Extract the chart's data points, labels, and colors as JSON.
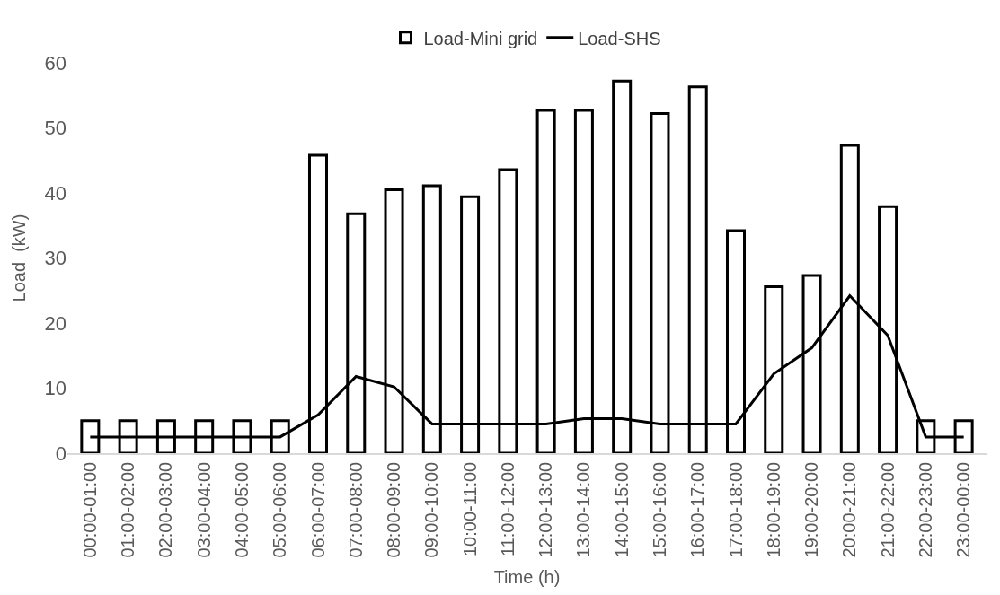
{
  "chart_data": {
    "type": "bar",
    "xlabel": "Time (h)",
    "ylabel": "Load  (kW)",
    "categories": [
      "00:00-01:00",
      "01:00-02:00",
      "02:00-03:00",
      "03:00-04:00",
      "04:00-05:00",
      "05:00-06:00",
      "06:00-07:00",
      "07:00-08:00",
      "08:00-09:00",
      "09:00-10:00",
      "10:00-11:00",
      "11:00-12:00",
      "12:00-13:00",
      "13:00-14:00",
      "14:00-15:00",
      "15:00-16:00",
      "16:00-17:00",
      "17:00-18:00",
      "18:00-19:00",
      "19:00-20:00",
      "20:00-21:00",
      "21:00-22:00",
      "22:00-23:00",
      "23:00-00:00"
    ],
    "series": [
      {
        "name": "Load-Mini grid",
        "color": "#ffffff",
        "values": [
          5,
          5,
          5,
          5,
          5,
          5,
          45.8,
          36.8,
          40.5,
          41.1,
          39.4,
          43.6,
          52.7,
          52.7,
          57.2,
          52.2,
          56.3,
          34.2,
          25.6,
          27.3,
          47.3,
          37.9,
          5,
          5
        ]
      },
      {
        "name": "Load-SHS",
        "type": "line",
        "color": "#000000",
        "values": [
          2.5,
          2.5,
          2.5,
          2.5,
          2.5,
          2.5,
          5.9,
          11.8,
          10.2,
          4.5,
          4.5,
          4.5,
          4.5,
          5.3,
          5.3,
          4.5,
          4.5,
          4.5,
          12.2,
          16.2,
          24.2,
          18.1,
          2.5,
          2.5
        ]
      }
    ],
    "ylim": [
      0,
      60
    ],
    "yticks": [
      0,
      10,
      20,
      30,
      40,
      50,
      60
    ],
    "legend": "top",
    "marker": "none",
    "line_style": "solid"
  }
}
